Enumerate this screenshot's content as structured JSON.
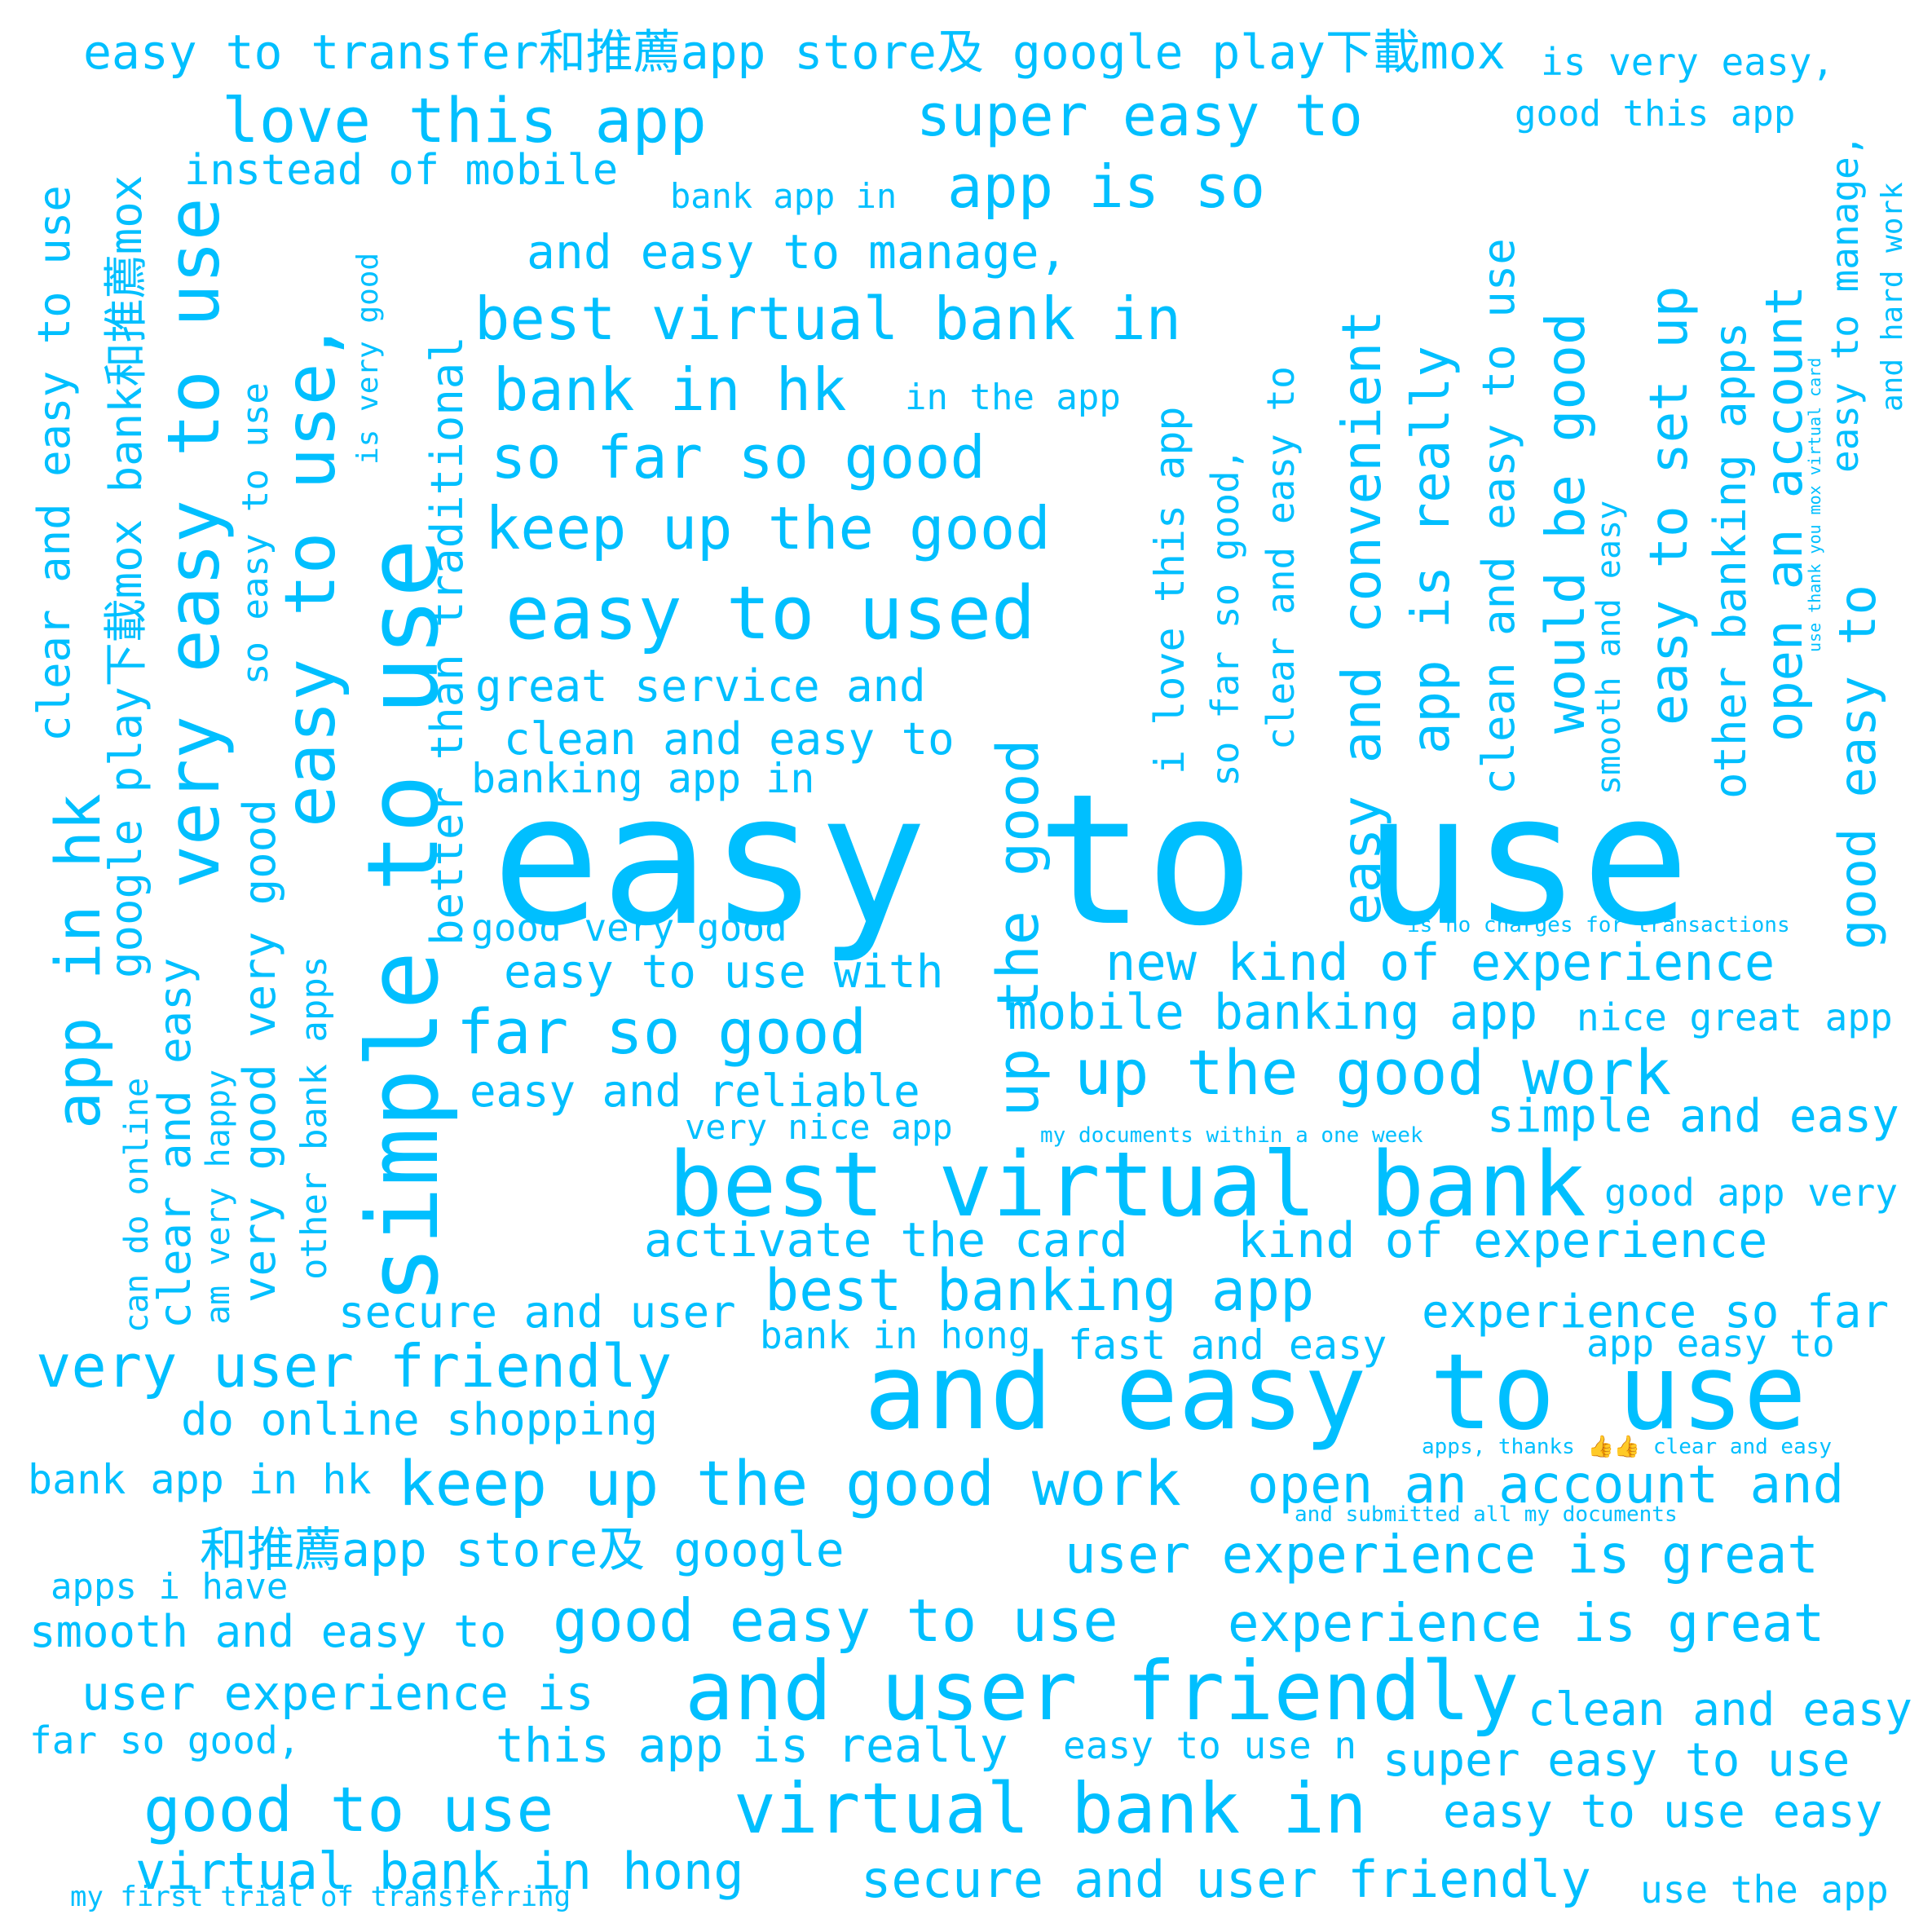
{
  "color": "#00BFFF",
  "words": [
    "easy to use",
    "and easy to use",
    "best virtual bank",
    "simple to use",
    "and user friendly",
    "virtual bank in",
    "keep up the good work",
    "easy to used",
    "very easy to use",
    "easy to use,",
    "easy to transfer和推薦app store及 google play下載mox",
    "love this app",
    "super easy to",
    "app is so",
    "best virtual bank in",
    "bank in hk",
    "so far so good",
    "keep up the good",
    "and easy to manage,",
    "instead of mobile",
    "bank app in",
    "is very easy,",
    "good this app",
    "great service and",
    "clean and easy to",
    "banking app in",
    "good very good",
    "easy to use with",
    "far so good",
    "easy and reliable",
    "very nice app",
    "activate the card",
    "secure and user",
    "best banking app",
    "bank in hong",
    "very user friendly",
    "do online shopping",
    "bank app in hk",
    "和推薦app store及 google",
    "apps i have",
    "smooth and easy to",
    "good easy to use",
    "user experience is",
    "far so good,",
    "this app is really",
    "good to use",
    "virtual bank in hong",
    "my first trial of transferring",
    "secure and user friendly",
    "use the app",
    "easy to use easy",
    "super easy to use",
    "easy to use n",
    "clean and easy",
    "experience is great",
    "user experience is great",
    "open an account and",
    "and submitted all my documents",
    "apps, thanks 👍👍 clear and easy",
    "app easy to",
    "fast and easy",
    "experience so far",
    "kind of experience",
    "good app very",
    "my documents within a one week",
    "simple and easy",
    "up the good work",
    "mobile banking app",
    "nice great app",
    "new kind of experience",
    "is no charges for transactions",
    "clear and easy to use",
    "app in hk",
    "google play下載mox bank和推薦mox",
    "clear and easy",
    "can do online",
    "am very happy",
    "very good very good",
    "so easy to use",
    "other bank apps",
    "is very good",
    "better than traditional",
    "up the good",
    "i love this app",
    "so far so good,",
    "clear and easy to",
    "easy and convenient",
    "app is really",
    "clean and easy to use",
    "smooth and easy",
    "would be good",
    "easy to set up",
    "other banking apps",
    "open an account",
    "use thank you mox virtual card",
    "good easy to",
    "easy to manage,",
    "and hard work",
    "in the app"
  ]
}
